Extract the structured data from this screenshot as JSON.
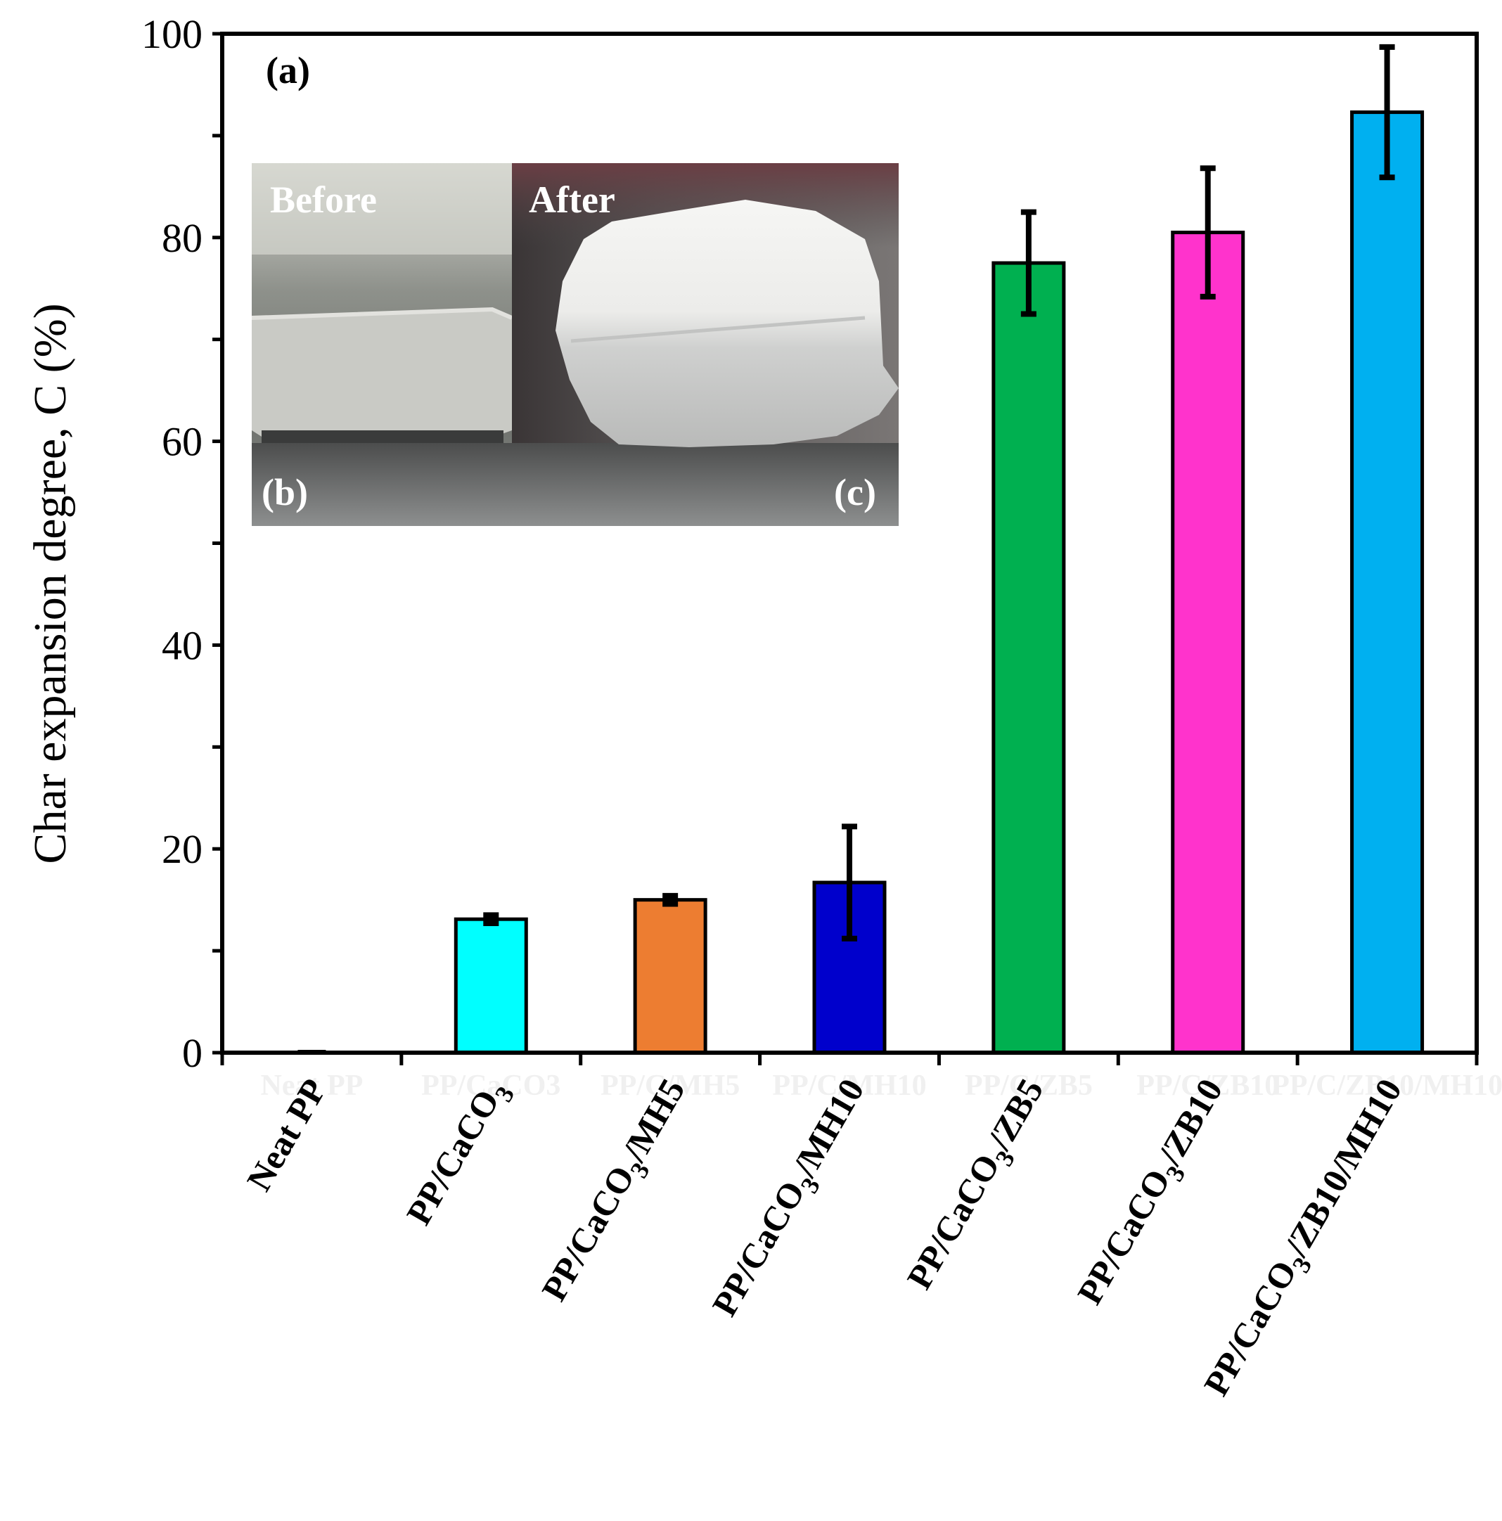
{
  "chart_data": {
    "type": "bar",
    "title": "",
    "xlabel": "",
    "ylabel": "Char expansion degree, C (%)",
    "ylim": [
      0,
      100
    ],
    "yticks": [
      0,
      20,
      40,
      60,
      80,
      100
    ],
    "grid": false,
    "categories": [
      [
        "Neat PP",
        ""
      ],
      [
        "PP/CaCO",
        "3"
      ],
      [
        "PP/CaCO",
        "3",
        "/MH5"
      ],
      [
        "PP/CaCO",
        "3",
        "/MH10"
      ],
      [
        "PP/CaCO",
        "3",
        "/ZB5"
      ],
      [
        "PP/CaCO",
        "3",
        "/ZB10"
      ],
      [
        "PP/CaCO",
        "3",
        "/ZB10/MH10"
      ]
    ],
    "faint_labels": [
      "Neat PP",
      "PP/CaCO3",
      "PP/C/MH5",
      "PP/C/MH10",
      "PP/C/ZB5",
      "PP/C/ZB10",
      "PP/C/ZB10/MH10"
    ],
    "values": [
      0,
      13.1,
      15.0,
      16.7,
      77.5,
      80.5,
      92.3
    ],
    "errors": [
      0,
      0.4,
      0.4,
      5.5,
      5.0,
      6.3,
      6.4
    ],
    "bar_colors": [
      "#ffffff",
      "#00ffff",
      "#ed7d31",
      "#0000cc",
      "#00b050",
      "#ff33cc",
      "#00b0f0"
    ],
    "panel_label": "(a)",
    "inset": {
      "before_caption": "Before",
      "after_caption": "After",
      "before_label": "(b)",
      "after_label": "(c)"
    }
  }
}
